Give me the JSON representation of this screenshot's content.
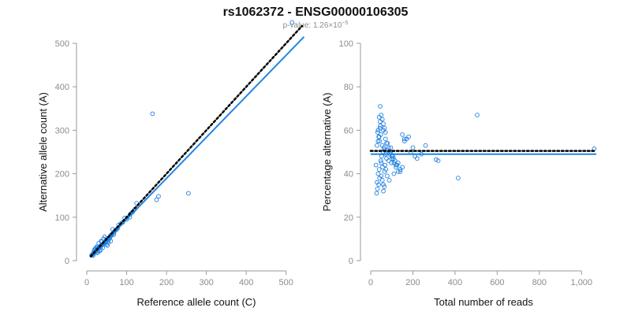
{
  "title": "rs1062372 - ENSG00000106305",
  "subtitle_prefix": "p-value: 1.26×10",
  "subtitle_exponent": "−5",
  "colors": {
    "points": "#1e7fe0",
    "fit_line": "#1e88e5",
    "reference_line": "#000000",
    "axis": "#9a9a9a"
  },
  "chart_data": [
    {
      "type": "scatter",
      "xlabel": "Reference allele count (C)",
      "ylabel": "Alternative allele count (A)",
      "xlim": [
        0,
        550
      ],
      "ylim": [
        0,
        500
      ],
      "x_ticks": [
        0,
        100,
        200,
        300,
        400,
        500
      ],
      "x_tick_labels": [
        "0",
        "100",
        "200",
        "300",
        "400",
        "500"
      ],
      "y_ticks": [
        0,
        100,
        200,
        300,
        400,
        500
      ],
      "y_tick_labels": [
        "0",
        "100",
        "200",
        "300",
        "400",
        "500"
      ],
      "reference_line": {
        "style": "dotted",
        "x": [
          10,
          540
        ],
        "y": [
          10,
          540
        ]
      },
      "fit_line": {
        "x": [
          10,
          545
        ],
        "y": [
          10,
          515
        ]
      },
      "x": [
        515,
        165,
        255,
        180,
        175,
        125,
        120,
        115,
        110,
        108,
        100,
        95,
        90,
        85,
        80,
        78,
        75,
        72,
        70,
        68,
        65,
        62,
        60,
        58,
        55,
        52,
        50,
        48,
        46,
        44,
        42,
        40,
        38,
        36,
        35,
        34,
        33,
        32,
        31,
        30,
        29,
        28,
        27,
        26,
        25,
        24,
        23,
        22,
        21,
        20,
        19,
        18,
        17,
        16,
        15,
        14,
        13,
        12,
        45,
        55,
        65,
        40,
        50,
        60,
        30,
        35,
        25,
        20,
        28,
        38,
        48,
        58,
        68,
        22,
        18,
        42,
        52,
        62,
        32,
        36,
        26,
        16,
        24,
        44,
        54
      ],
      "y": [
        548,
        338,
        155,
        148,
        140,
        132,
        118,
        112,
        108,
        100,
        95,
        98,
        88,
        85,
        82,
        75,
        72,
        70,
        68,
        65,
        62,
        60,
        58,
        55,
        52,
        48,
        50,
        45,
        44,
        42,
        40,
        38,
        36,
        34,
        35,
        33,
        32,
        30,
        31,
        29,
        28,
        27,
        26,
        25,
        24,
        23,
        22,
        21,
        20,
        20,
        19,
        18,
        17,
        16,
        15,
        14,
        13,
        12,
        55,
        48,
        72,
        30,
        38,
        45,
        40,
        25,
        32,
        26,
        20,
        44,
        42,
        52,
        60,
        28,
        22,
        50,
        35,
        58,
        22,
        45,
        18,
        12,
        30,
        38,
        42
      ]
    },
    {
      "type": "scatter",
      "xlabel": "Total number of reads",
      "ylabel": "Percentage alternative (A)",
      "xlim": [
        0,
        1070
      ],
      "ylim": [
        0,
        100
      ],
      "x_ticks": [
        0,
        200,
        400,
        600,
        800,
        1000
      ],
      "x_tick_labels": [
        "0",
        "200",
        "400",
        "600",
        "800",
        "1,000"
      ],
      "y_ticks": [
        0,
        20,
        40,
        60,
        80,
        100
      ],
      "y_tick_labels": [
        "0",
        "20",
        "40",
        "60",
        "80",
        "100"
      ],
      "reference_line": {
        "style": "dotted",
        "x": [
          0,
          1070
        ],
        "y": [
          50.5,
          50.5
        ]
      },
      "fit_line": {
        "x": [
          0,
          1070
        ],
        "y": [
          49,
          49
        ]
      },
      "x": [
        1060,
        505,
        415,
        320,
        310,
        260,
        240,
        220,
        210,
        200,
        190,
        180,
        170,
        160,
        150,
        140,
        130,
        120,
        110,
        100,
        95,
        90,
        85,
        80,
        75,
        70,
        65,
        60,
        55,
        50,
        48,
        45,
        42,
        40,
        38,
        35,
        32,
        30,
        28,
        25,
        45,
        50,
        55,
        60,
        65,
        70,
        40,
        35,
        30,
        80,
        90,
        100,
        110,
        120,
        130,
        50,
        55,
        60,
        45,
        40,
        35,
        70,
        75,
        85,
        95,
        105,
        115,
        125,
        140,
        150,
        160,
        60,
        65,
        48,
        52,
        58,
        62,
        68,
        72,
        42,
        38,
        33,
        44,
        56,
        66,
        78,
        88,
        98,
        108
      ],
      "y": [
        51.5,
        67,
        38,
        46,
        46.5,
        53,
        49,
        47,
        48,
        52,
        50,
        57,
        56,
        55,
        43,
        41,
        45,
        44,
        40,
        48,
        52,
        50,
        46,
        54,
        47,
        49,
        51,
        60,
        53,
        45,
        58,
        62,
        38,
        42,
        35,
        40,
        33,
        36,
        31,
        44,
        71,
        67,
        65,
        63,
        61,
        59,
        57,
        55,
        53,
        51,
        49,
        47,
        45,
        43,
        41,
        39,
        37,
        35,
        64,
        66,
        60,
        56,
        54,
        52,
        50,
        48,
        46,
        44,
        42,
        58,
        56,
        32,
        34,
        46,
        48,
        50,
        52,
        44,
        42,
        55,
        57,
        59,
        61,
        43,
        41,
        39,
        37,
        45,
        47
      ]
    }
  ]
}
